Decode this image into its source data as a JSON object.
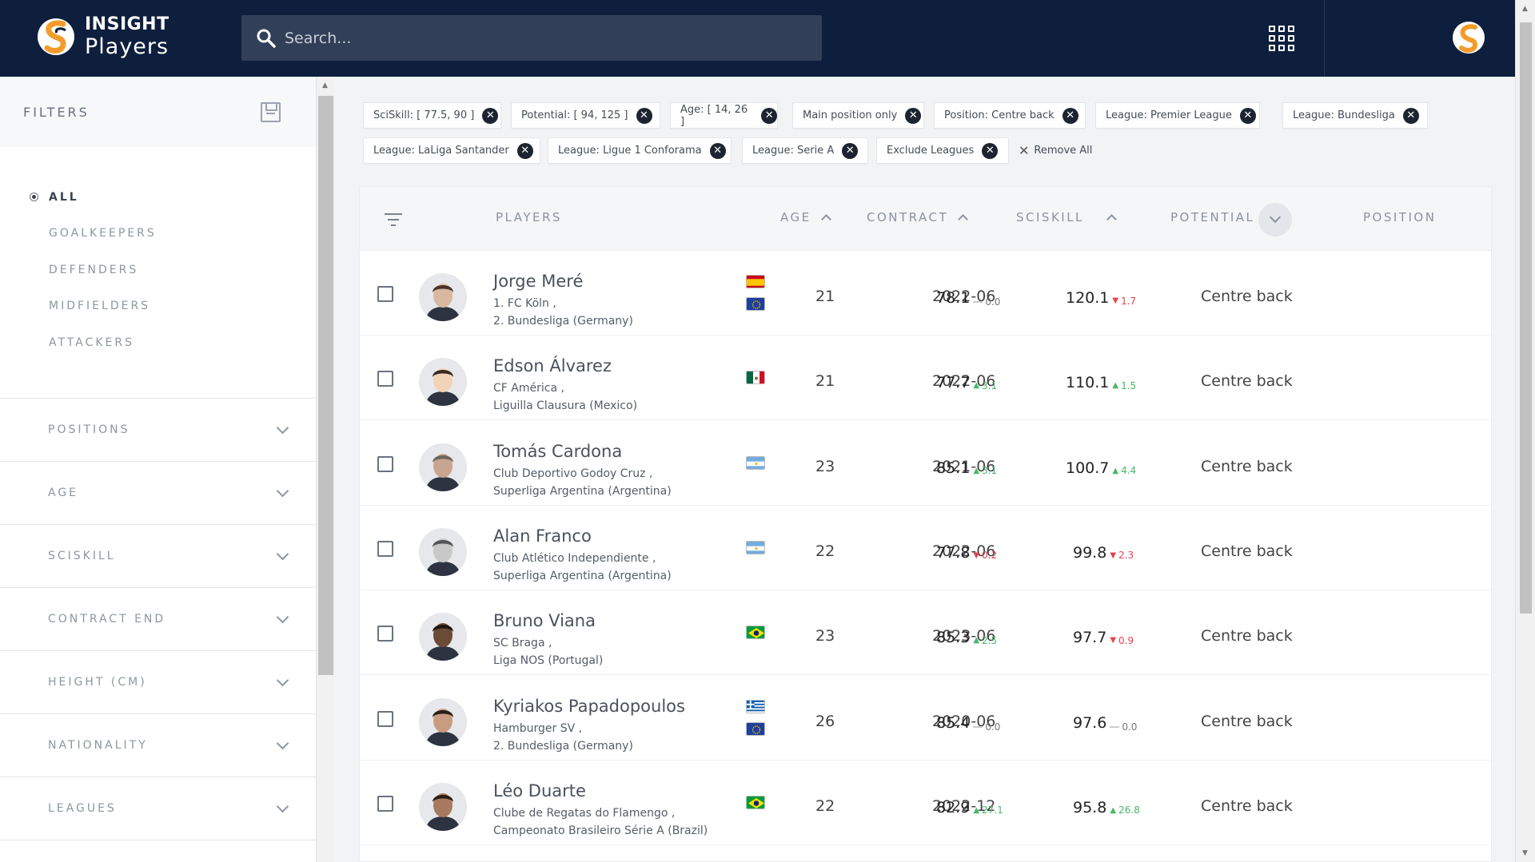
{
  "header": {
    "logo_line1": "INSIGHT",
    "logo_line2": "Players",
    "search_placeholder": "Search..."
  },
  "sidebar": {
    "title": "FILTERS",
    "positions": [
      "ALL",
      "GOALKEEPERS",
      "DEFENDERS",
      "MIDFIELDERS",
      "ATTACKERS"
    ],
    "active_position": "ALL",
    "accordions": [
      "POSITIONS",
      "AGE",
      "SCISKILL",
      "CONTRACT END",
      "HEIGHT (CM)",
      "NATIONALITY",
      "LEAGUES"
    ]
  },
  "chips": [
    "SciSkill: [ 77.5, 90 ]",
    "Potential: [ 94, 125 ]",
    "Age: [ 14, 26 ]",
    "Main position only",
    "Position: Centre back",
    "League: Premier League",
    "League: Bundesliga",
    "League: LaLiga Santander",
    "League: Ligue 1 Conforama",
    "League: Serie A",
    "Exclude Leagues"
  ],
  "remove_all_label": "Remove All",
  "table": {
    "headers": {
      "players": "PLAYERS",
      "age": "AGE",
      "contract": "CONTRACT",
      "sciskill": "SCISKILL",
      "potential": "POTENTIAL",
      "position": "POSITION"
    },
    "rows": [
      {
        "name": "Jorge Meré",
        "club": "1. FC Köln ,",
        "league": "2. Bundesliga (Germany)",
        "flags": [
          "spain",
          "eu"
        ],
        "age": "21",
        "contract": "2022-06",
        "sciskill": "78.1",
        "sciskill_delta": "0.0",
        "sciskill_trend": "flat",
        "potential": "120.1",
        "potential_delta": "1.7",
        "potential_trend": "down",
        "position": "Centre back",
        "skin": "#d9b8a0",
        "hair": "#4a3326"
      },
      {
        "name": "Edson Álvarez",
        "club": "CF América ,",
        "league": "Liguilla Clausura (Mexico)",
        "flags": [
          "mexico"
        ],
        "age": "21",
        "contract": "2022-06",
        "sciskill": "77.7",
        "sciskill_delta": "3.1",
        "sciskill_trend": "up",
        "potential": "110.1",
        "potential_delta": "1.5",
        "potential_trend": "up",
        "position": "Centre back",
        "skin": "#f2d3b7",
        "hair": "#3b2a22"
      },
      {
        "name": "Tomás Cardona",
        "club": "Club Deportivo Godoy Cruz ,",
        "league": "Superliga Argentina (Argentina)",
        "flags": [
          "argentina"
        ],
        "age": "23",
        "contract": "2021-06",
        "sciskill": "85.1",
        "sciskill_delta": "3.1",
        "sciskill_trend": "up",
        "potential": "100.7",
        "potential_delta": "4.4",
        "potential_trend": "up",
        "position": "Centre back",
        "skin": "#c9a58f",
        "hair": "#6d6560"
      },
      {
        "name": "Alan Franco",
        "club": "Club Atlético Independiente ,",
        "league": "Superliga Argentina (Argentina)",
        "flags": [
          "argentina"
        ],
        "age": "22",
        "contract": "2022-06",
        "sciskill": "77.8",
        "sciskill_delta": "0.2",
        "sciskill_trend": "down",
        "potential": "99.8",
        "potential_delta": "2.3",
        "potential_trend": "down",
        "position": "Centre back",
        "skin": "#c8c8c8",
        "hair": "#555555"
      },
      {
        "name": "Bruno Viana",
        "club": "SC Braga ,",
        "league": "Liga NOS (Portugal)",
        "flags": [
          "brazil"
        ],
        "age": "23",
        "contract": "2023-06",
        "sciskill": "85.3",
        "sciskill_delta": "2.5",
        "sciskill_trend": "up",
        "potential": "97.7",
        "potential_delta": "0.9",
        "potential_trend": "down",
        "position": "Centre back",
        "skin": "#6b4a36",
        "hair": "#1e1410"
      },
      {
        "name": "Kyriakos Papadopoulos",
        "club": "Hamburger SV ,",
        "league": "2. Bundesliga (Germany)",
        "flags": [
          "greece",
          "eu"
        ],
        "age": "26",
        "contract": "2020-06",
        "sciskill": "85.4",
        "sciskill_delta": "0.0",
        "sciskill_trend": "flat",
        "potential": "97.6",
        "potential_delta": "0.0",
        "potential_trend": "flat",
        "position": "Centre back",
        "skin": "#c99c82",
        "hair": "#2a1d17"
      },
      {
        "name": "Léo Duarte",
        "club": "Clube de Regatas do Flamengo ,",
        "league": "Campeonato Brasileiro Série A (Brazil)",
        "flags": [
          "brazil"
        ],
        "age": "22",
        "contract": "2022-12",
        "sciskill": "82.9",
        "sciskill_delta": "27.1",
        "sciskill_trend": "up",
        "potential": "95.8",
        "potential_delta": "26.8",
        "potential_trend": "up",
        "position": "Centre back",
        "skin": "#a77a60",
        "hair": "#2b1c14"
      }
    ]
  },
  "colors": {
    "header_bg": "#0e1f3d",
    "search_bg": "#323f58",
    "accent_orange": "#f39c2c",
    "delta_up": "#44b866",
    "delta_down": "#e5424d"
  }
}
